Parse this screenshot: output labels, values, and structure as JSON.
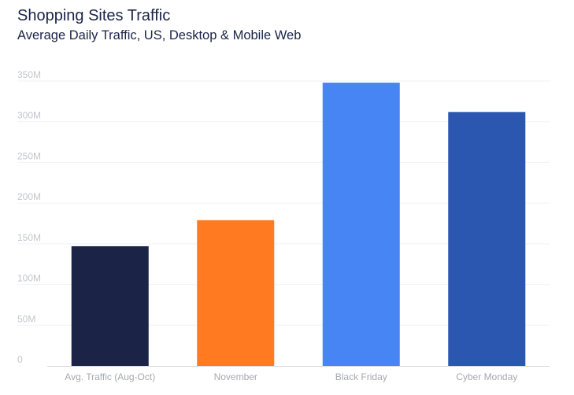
{
  "chart_data": {
    "type": "bar",
    "title": "Shopping Sites Traffic",
    "subtitle": "Average Daily Traffic, US, Desktop & Mobile Web",
    "xlabel": "",
    "ylabel": "",
    "categories": [
      "Avg. Traffic (Aug-Oct)",
      "November",
      "Black Friday",
      "Cyber Monday"
    ],
    "values": [
      147,
      179,
      348,
      312
    ],
    "value_unit": "M",
    "colors": [
      "#1b2347",
      "#ff7a21",
      "#4785f4",
      "#2c57b0"
    ],
    "ylim": [
      0,
      350
    ],
    "yticks": [
      0,
      50,
      100,
      150,
      200,
      250,
      300,
      350
    ],
    "ytick_labels": [
      "0",
      "50M",
      "100M",
      "150M",
      "200M",
      "250M",
      "300M",
      "350M"
    ],
    "grid": true,
    "legend": "none"
  }
}
